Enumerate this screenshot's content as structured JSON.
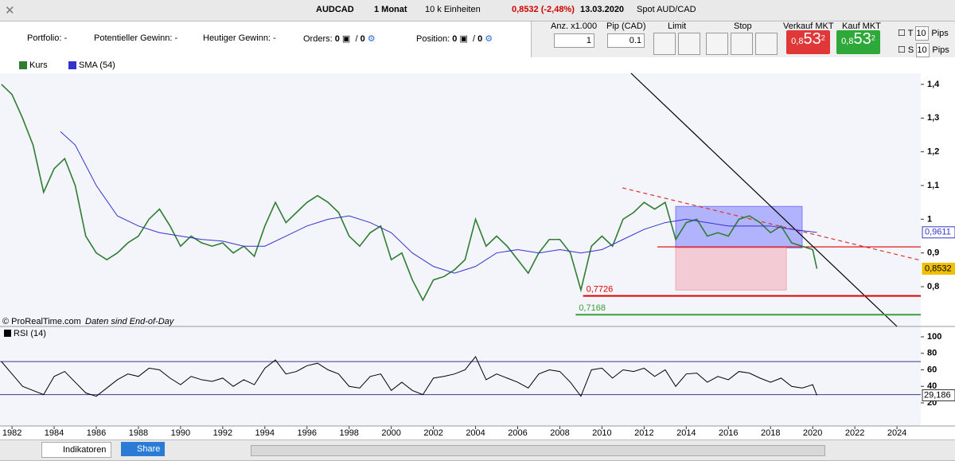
{
  "toolbar": {
    "symbol": "AUDCAD",
    "period": "1 Monat",
    "units": "10 k Einheiten",
    "quote": "0,8532 (-2,48%)",
    "date": "13.03.2020",
    "spot": "Spot AUD/CAD"
  },
  "account": {
    "portfolio": {
      "label": "Portfolio:",
      "value": "-"
    },
    "potential": {
      "label": "Potentieller Gewinn:",
      "value": "-"
    },
    "today": {
      "label": "Heutiger Gewinn:",
      "value": "-"
    },
    "orders": {
      "label": "Orders:",
      "a": 0,
      "sep": "/",
      "b": 0
    },
    "position": {
      "label": "Position:",
      "a": 0,
      "sep": "/",
      "b": 0
    }
  },
  "order_panel": {
    "qty_label": "Anz. x1.000",
    "qty": 1,
    "pip_label": "Pip (CAD)",
    "pip": "0.1",
    "limit": "Limit",
    "stop": "Stop",
    "sell": {
      "label": "Verkauf MKT",
      "p1": "0,8",
      "p2": "53",
      "p3": "2"
    },
    "buy": {
      "label": "Kauf MKT",
      "p1": "0,8",
      "p2": "53",
      "p3": "2"
    },
    "t": {
      "label": "T",
      "value": 10,
      "unit": "Pips"
    },
    "s": {
      "label": "S",
      "value": 10,
      "unit": "Pips"
    }
  },
  "chart_data": [
    {
      "type": "line",
      "xlim": [
        1981.43,
        2025.13
      ],
      "ylim": [
        0.682,
        1.433
      ],
      "xticks": [
        1982,
        1984,
        1986,
        1988,
        1990,
        1992,
        1994,
        1996,
        1998,
        2000,
        2002,
        2004,
        2006,
        2008,
        2010,
        2012,
        2014,
        2016,
        2018,
        2020,
        2022,
        2024
      ],
      "yticks": [
        {
          "value": 1.4,
          "label": "1,4"
        },
        {
          "value": 1.3,
          "label": "1,3"
        },
        {
          "value": 1.2,
          "label": "1,2"
        },
        {
          "value": 1.1,
          "label": "1,1"
        },
        1,
        {
          "value": 0.9,
          "label": "0,9"
        },
        {
          "value": 0.8,
          "label": "0,8"
        }
      ],
      "series": [
        {
          "name": "Kurs",
          "color": "#2e7d32",
          "x": [
            1981.5,
            1982,
            1982.5,
            1983,
            1983.5,
            1984,
            1984.5,
            1985,
            1985.5,
            1986,
            1986.5,
            1987,
            1987.5,
            1988,
            1988.5,
            1989,
            1989.5,
            1990,
            1990.5,
            1991,
            1991.5,
            1992,
            1992.5,
            1993,
            1993.5,
            1994,
            1994.5,
            1995,
            1995.5,
            1996,
            1996.5,
            1997,
            1997.5,
            1998,
            1998.5,
            1999,
            1999.5,
            2000,
            2000.5,
            2001,
            2001.5,
            2002,
            2002.5,
            2003,
            2003.5,
            2004,
            2004.5,
            2005,
            2005.5,
            2006,
            2006.5,
            2007,
            2007.5,
            2008,
            2008.5,
            2009,
            2009.5,
            2010,
            2010.5,
            2011,
            2011.5,
            2012,
            2012.5,
            2013,
            2013.5,
            2014,
            2014.5,
            2015,
            2015.5,
            2016,
            2016.5,
            2017,
            2017.5,
            2018,
            2018.5,
            2019,
            2019.5,
            2020,
            2020.2
          ],
          "values": [
            1.4,
            1.37,
            1.3,
            1.22,
            1.08,
            1.15,
            1.18,
            1.1,
            0.95,
            0.9,
            0.88,
            0.9,
            0.93,
            0.95,
            1.0,
            1.03,
            0.98,
            0.92,
            0.95,
            0.93,
            0.92,
            0.93,
            0.9,
            0.92,
            0.89,
            0.98,
            1.05,
            0.99,
            1.02,
            1.05,
            1.07,
            1.05,
            1.02,
            0.95,
            0.92,
            0.96,
            0.98,
            0.88,
            0.9,
            0.82,
            0.76,
            0.82,
            0.83,
            0.85,
            0.88,
            1.0,
            0.92,
            0.95,
            0.92,
            0.88,
            0.84,
            0.9,
            0.94,
            0.94,
            0.9,
            0.79,
            0.92,
            0.95,
            0.92,
            1.0,
            1.02,
            1.05,
            1.03,
            1.05,
            0.94,
            0.99,
            1.0,
            0.95,
            0.96,
            0.95,
            1.0,
            1.01,
            0.99,
            0.96,
            0.98,
            0.93,
            0.92,
            0.91,
            0.8532
          ]
        },
        {
          "name": "SMA (54)",
          "color": "#3333cc",
          "x": [
            1984.3,
            1985,
            1986,
            1987,
            1988,
            1989,
            1990,
            1991,
            1992,
            1993,
            1994,
            1995,
            1996,
            1997,
            1998,
            1999,
            2000,
            2001,
            2002,
            2003,
            2004,
            2005,
            2006,
            2007,
            2008,
            2009,
            2010,
            2011,
            2012,
            2013,
            2014,
            2015,
            2016,
            2017,
            2018,
            2019,
            2020.2
          ],
          "values": [
            1.26,
            1.22,
            1.1,
            1.01,
            0.98,
            0.96,
            0.95,
            0.94,
            0.935,
            0.92,
            0.92,
            0.95,
            0.98,
            1.0,
            1.01,
            0.99,
            0.96,
            0.9,
            0.86,
            0.84,
            0.86,
            0.9,
            0.91,
            0.9,
            0.91,
            0.9,
            0.91,
            0.94,
            0.97,
            0.99,
            1.0,
            0.99,
            0.98,
            0.98,
            0.98,
            0.97,
            0.9611
          ]
        }
      ],
      "price_labels": [
        {
          "value": 0.9611,
          "label": "0,9611",
          "color": "#3333cc"
        },
        {
          "value": 0.8532,
          "label": "0,8532",
          "color": "#f0c000"
        }
      ],
      "levels": [
        {
          "x": 2009.1,
          "value": 0.7726,
          "label": "0,7726",
          "color": "#e00000"
        },
        {
          "x": 2008.75,
          "value": 0.7168,
          "label": "0,7168",
          "color": "#3aa03a"
        }
      ],
      "drawings": [
        {
          "type": "rect",
          "x": [
            2013.5,
            2019.5
          ],
          "y": [
            0.915,
            1.038
          ],
          "color": "#7b7bff"
        },
        {
          "type": "rect",
          "x": [
            2013.5,
            2018.75
          ],
          "y": [
            0.79,
            0.915
          ],
          "color": "#f0a8b4"
        },
        {
          "type": "line",
          "x": [
            2012.63,
            2025.13
          ],
          "y": [
            0.918,
            0.918
          ],
          "color": "#e00000"
        },
        {
          "type": "dash",
          "x": [
            2010.97,
            2025.13
          ],
          "y": [
            1.093,
            0.878
          ],
          "color": "#e03030"
        },
        {
          "type": "line",
          "x": [
            2011.38,
            2024.0
          ],
          "y": [
            1.433,
            0.682
          ],
          "color": "#000000"
        }
      ],
      "source": "© ProRealTime.com",
      "note": "Daten sind End-of-Day"
    },
    {
      "type": "line",
      "xlim": [
        1981.43,
        2025.13
      ],
      "ylim": [
        -8,
        111.6
      ],
      "yticks": [
        100,
        80,
        60,
        40,
        20
      ],
      "levels": [
        70,
        30
      ],
      "series": [
        {
          "name": "RSI (14)",
          "color": "#000000",
          "x": [
            1981.5,
            1982,
            1982.5,
            1983,
            1983.5,
            1984,
            1984.5,
            1985,
            1985.5,
            1986,
            1986.5,
            1987,
            1987.5,
            1988,
            1988.5,
            1989,
            1989.5,
            1990,
            1990.5,
            1991,
            1991.5,
            1992,
            1992.5,
            1993,
            1993.5,
            1994,
            1994.5,
            1995,
            1995.5,
            1996,
            1996.5,
            1997,
            1997.5,
            1998,
            1998.5,
            1999,
            1999.5,
            2000,
            2000.5,
            2001,
            2001.5,
            2002,
            2002.5,
            2003,
            2003.5,
            2004,
            2004.5,
            2005,
            2005.5,
            2006,
            2006.5,
            2007,
            2007.5,
            2008,
            2008.5,
            2009,
            2009.5,
            2010,
            2010.5,
            2011,
            2011.5,
            2012,
            2012.5,
            2013,
            2013.5,
            2014,
            2014.5,
            2015,
            2015.5,
            2016,
            2016.5,
            2017,
            2017.5,
            2018,
            2018.5,
            2019,
            2019.5,
            2020,
            2020.2
          ],
          "values": [
            70,
            55,
            40,
            35,
            30,
            52,
            58,
            45,
            32,
            28,
            38,
            48,
            55,
            52,
            62,
            60,
            50,
            42,
            52,
            48,
            46,
            50,
            40,
            48,
            42,
            62,
            72,
            55,
            58,
            65,
            68,
            60,
            55,
            40,
            38,
            52,
            55,
            35,
            45,
            35,
            30,
            50,
            52,
            55,
            60,
            76,
            48,
            55,
            50,
            45,
            38,
            55,
            60,
            58,
            45,
            28,
            60,
            62,
            50,
            60,
            58,
            62,
            52,
            60,
            40,
            55,
            56,
            45,
            52,
            48,
            58,
            56,
            50,
            45,
            50,
            40,
            38,
            42,
            29.186
          ]
        }
      ],
      "last": {
        "value": 29.186,
        "label": "29,186"
      }
    }
  ],
  "bottom": {
    "indicators": "Indikatoren",
    "share": "Share"
  }
}
